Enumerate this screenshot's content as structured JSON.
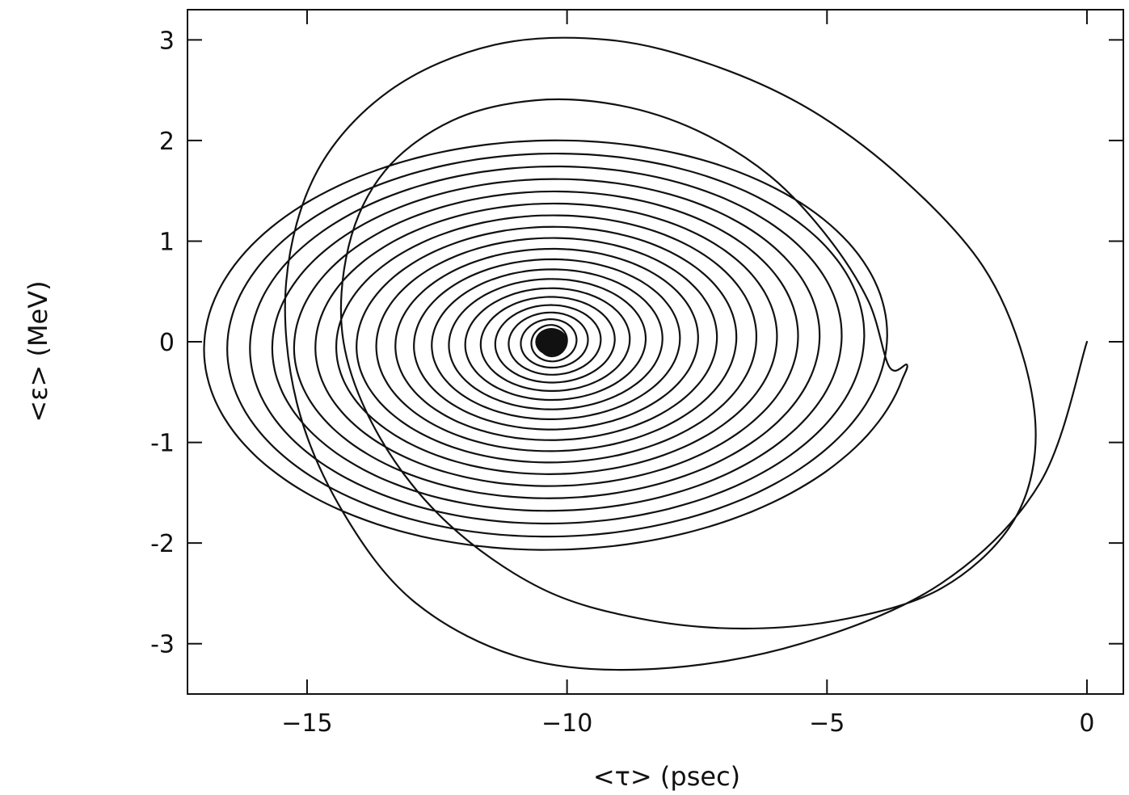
{
  "chart_data": {
    "type": "line",
    "title": "",
    "xlabel": "<τ> (psec)",
    "ylabel": "<ε> (MeV)",
    "xlim": [
      -17.3,
      0.7
    ],
    "ylim": [
      -3.5,
      3.3
    ],
    "xticks": [
      -15,
      -10,
      -5,
      0
    ],
    "xtick_labels": [
      "−15",
      "−10",
      "−5",
      "0"
    ],
    "yticks": [
      3,
      2,
      1,
      0,
      -1,
      -2,
      -3
    ],
    "ytick_labels": [
      "3",
      "2",
      "1",
      "0",
      "-1",
      "-2",
      "-3"
    ],
    "grid": false,
    "legend": "none",
    "line_color": "#111111",
    "series": [
      {
        "description_free": true,
        "center": [
          -10.3,
          0.0
        ],
        "start": [
          0.0,
          0.0
        ],
        "turns": 22,
        "x": [
          0.0,
          -0.9,
          -2.8,
          -5.5,
          -8.3,
          -10.8,
          -12.9,
          -14.3,
          -15.2,
          -15.4,
          -14.8,
          -13.4,
          -11.4,
          -9.2,
          -7.2,
          -5.3,
          -3.5,
          -2.0,
          -1.2,
          -1.0,
          -1.5,
          -2.8,
          -4.6,
          -6.6,
          -8.6,
          -10.5,
          -12.3,
          -13.6,
          -14.3,
          -14.2,
          -13.5,
          -12.2,
          -10.6,
          -9.0,
          -7.5,
          -6.1,
          -5.0,
          -4.2,
          -3.8
        ],
        "y": [
          0.0,
          -1.4,
          -2.4,
          -3.0,
          -3.25,
          -3.15,
          -2.6,
          -1.7,
          -0.6,
          0.6,
          1.7,
          2.5,
          2.95,
          3.0,
          2.75,
          2.3,
          1.6,
          0.75,
          -0.2,
          -1.1,
          -1.85,
          -2.45,
          -2.75,
          -2.85,
          -2.75,
          -2.45,
          -1.8,
          -0.95,
          0.0,
          0.95,
          1.7,
          2.2,
          2.4,
          2.35,
          2.1,
          1.65,
          1.05,
          0.4,
          -0.25
        ]
      }
    ]
  }
}
